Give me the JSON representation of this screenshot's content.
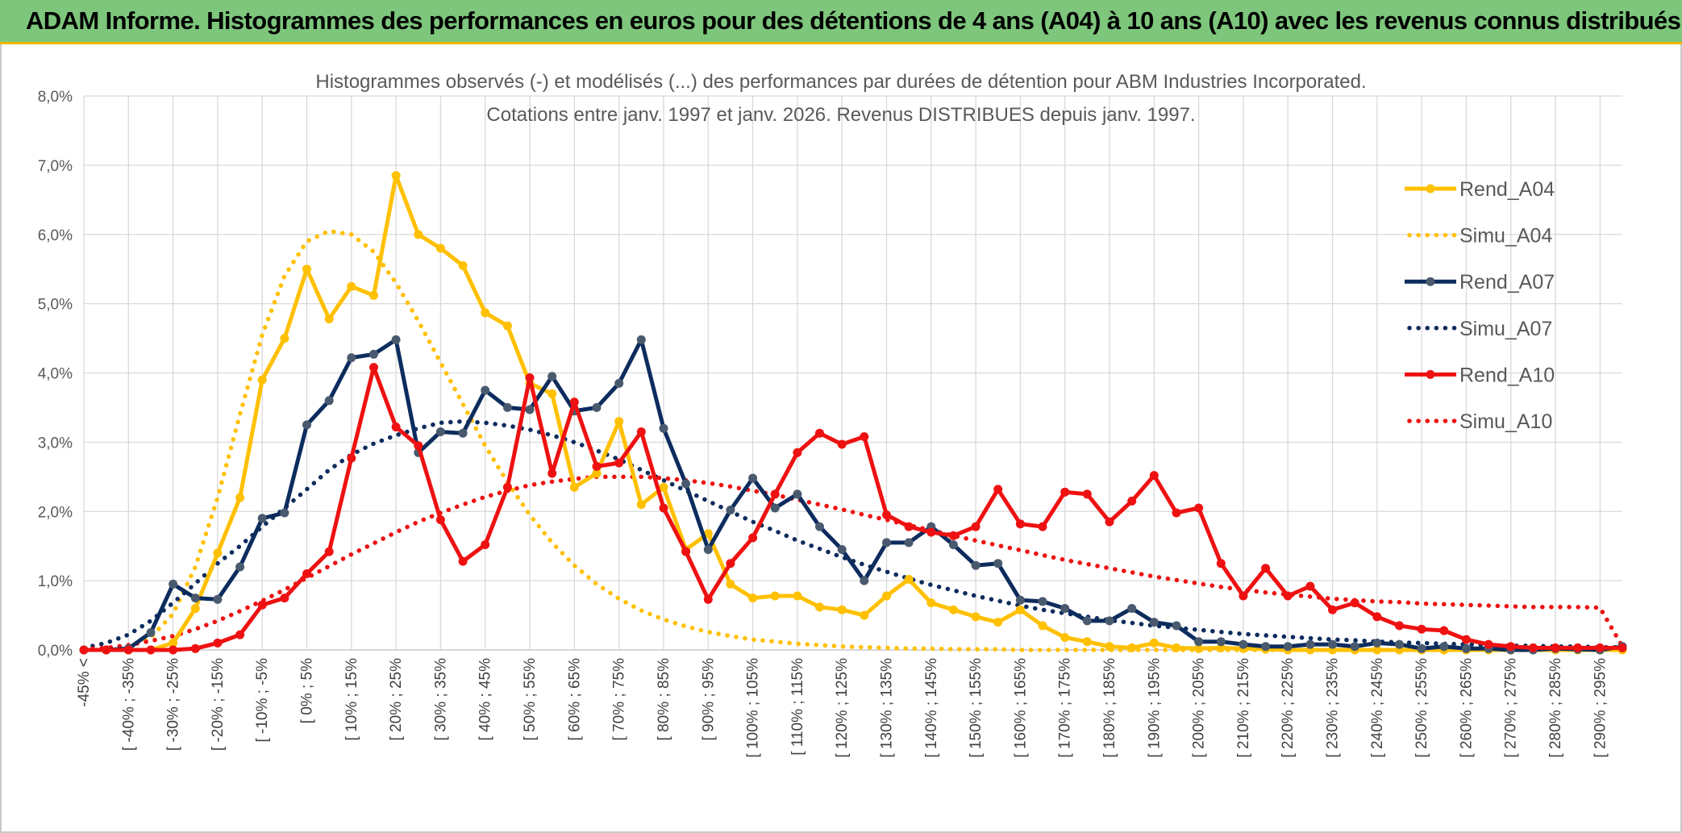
{
  "banner": {
    "title": "ADAM Informe. Histogrammes des performances en euros pour des détentions de 4 ans (A04) à 10 ans (A10) avec les revenus connus distribués"
  },
  "chart_data": {
    "type": "line",
    "title_lines": [
      "Histogrammes observés (-) et modélisés (...) des performances par durées de détention pour ABM Industries Incorporated.",
      "Cotations entre janv. 1997 et janv. 2026. Revenus DISTRIBUES depuis janv. 1997."
    ],
    "ylim": [
      0,
      8
    ],
    "ytick_labels": [
      "0,0%",
      "1,0%",
      "2,0%",
      "3,0%",
      "4,0%",
      "5,0%",
      "6,0%",
      "7,0%",
      "8,0%"
    ],
    "grid": true,
    "legend_position": "right",
    "x_labels": [
      "-45% <",
      "[ -40% ; -35%",
      "[ -30% ; -25%",
      "[ -20% ; -15%",
      "[ -10% ; -5%",
      "[ 0% ; 5%",
      "[ 10% ; 15%",
      "[ 20% ; 25%",
      "[ 30% ; 35%",
      "[ 40% ; 45%",
      "[ 50% ; 55%",
      "[ 60% ; 65%",
      "[ 70% ; 75%",
      "[ 80% ; 85%",
      "[ 90% ; 95%",
      "[ 100% ; 105%",
      "[ 110% ; 115%",
      "[ 120% ; 125%",
      "[ 130% ; 135%",
      "[ 140% ; 145%",
      "[ 150% ; 155%",
      "[ 160% ; 165%",
      "[ 170% ; 175%",
      "[ 180% ; 185%",
      "[ 190% ; 195%",
      "[ 200% ; 205%",
      "[ 210% ; 215%",
      "[ 220% ; 225%",
      "[ 230% ; 235%",
      "[ 240% ; 245%",
      "[ 250% ; 255%",
      "[ 260% ; 265%",
      "[ 270% ; 275%",
      "[ 280% ; 285%",
      "[ 290% ; 295%"
    ],
    "series": [
      {
        "name": "Rend_A04",
        "style": "solid",
        "color": "#ffc000",
        "values": [
          0.0,
          0.0,
          0.0,
          0.0,
          0.1,
          0.6,
          1.4,
          2.2,
          3.9,
          4.5,
          5.5,
          4.78,
          5.25,
          5.12,
          6.85,
          6.0,
          5.8,
          5.55,
          4.87,
          4.68,
          3.85,
          3.7,
          2.35,
          2.55,
          3.3,
          2.1,
          2.35,
          1.45,
          1.68,
          0.95,
          0.75,
          0.78,
          0.78,
          0.62,
          0.58,
          0.5,
          0.78,
          1.02,
          0.68,
          0.58,
          0.48,
          0.4,
          0.58,
          0.35,
          0.18,
          0.12,
          0.05,
          0.03,
          0.1,
          0.03,
          0.02,
          0.03,
          0.02,
          0.01,
          0.0,
          0.0,
          0.0,
          0.0,
          0.0,
          0.0,
          0.0,
          0.0,
          0.0,
          0.0,
          0.0,
          0.0,
          0.0,
          0.0,
          0.0,
          0.0
        ]
      },
      {
        "name": "Simu_A04",
        "style": "dotted",
        "color": "#ffc000",
        "values": [
          0.0,
          0.01,
          0.05,
          0.18,
          0.52,
          1.2,
          2.2,
          3.4,
          4.55,
          5.4,
          5.9,
          6.05,
          6.0,
          5.75,
          5.3,
          4.75,
          4.15,
          3.55,
          2.95,
          2.42,
          1.95,
          1.55,
          1.22,
          0.95,
          0.74,
          0.57,
          0.44,
          0.34,
          0.26,
          0.2,
          0.15,
          0.12,
          0.09,
          0.07,
          0.05,
          0.04,
          0.03,
          0.02,
          0.02,
          0.01,
          0.01,
          0.01,
          0.0,
          0.0,
          0.0,
          0.0,
          0.0,
          0.0,
          0.0,
          0.0,
          0.0,
          0.0,
          0.0,
          0.0,
          0.0,
          0.0,
          0.0,
          0.0,
          0.0,
          0.0,
          0.0,
          0.0,
          0.0,
          0.0,
          0.0,
          0.0,
          0.0,
          0.0,
          0.0,
          0.0
        ]
      },
      {
        "name": "Rend_A07",
        "style": "solid",
        "color": "#0d2c5e",
        "values": [
          0.0,
          0.0,
          0.02,
          0.25,
          0.95,
          0.75,
          0.73,
          1.2,
          1.9,
          1.98,
          3.25,
          3.6,
          4.22,
          4.27,
          4.48,
          2.85,
          3.15,
          3.13,
          3.75,
          3.5,
          3.47,
          3.95,
          3.45,
          3.5,
          3.85,
          4.48,
          3.2,
          2.4,
          1.45,
          2.02,
          2.48,
          2.05,
          2.25,
          1.78,
          1.45,
          1.0,
          1.55,
          1.55,
          1.78,
          1.52,
          1.22,
          1.25,
          0.72,
          0.7,
          0.6,
          0.42,
          0.42,
          0.6,
          0.4,
          0.35,
          0.12,
          0.12,
          0.08,
          0.05,
          0.05,
          0.08,
          0.08,
          0.05,
          0.1,
          0.08,
          0.02,
          0.05,
          0.02,
          0.02,
          0.0,
          0.0,
          0.02,
          0.01,
          0.0,
          0.05
        ]
      },
      {
        "name": "Simu_A07",
        "style": "dotted",
        "color": "#0d2c5e",
        "values": [
          0.03,
          0.1,
          0.22,
          0.42,
          0.68,
          0.96,
          1.25,
          1.5,
          1.78,
          2.05,
          2.32,
          2.6,
          2.82,
          2.98,
          3.1,
          3.2,
          3.28,
          3.3,
          3.28,
          3.24,
          3.18,
          3.1,
          3.0,
          2.88,
          2.75,
          2.6,
          2.45,
          2.3,
          2.15,
          2.0,
          1.85,
          1.72,
          1.58,
          1.46,
          1.34,
          1.23,
          1.13,
          1.03,
          0.94,
          0.86,
          0.78,
          0.71,
          0.64,
          0.58,
          0.53,
          0.48,
          0.43,
          0.39,
          0.35,
          0.32,
          0.29,
          0.26,
          0.23,
          0.21,
          0.19,
          0.17,
          0.15,
          0.14,
          0.12,
          0.11,
          0.1,
          0.09,
          0.08,
          0.07,
          0.06,
          0.06,
          0.05,
          0.05,
          0.04,
          0.04
        ]
      },
      {
        "name": "Rend_A10",
        "style": "solid",
        "color": "#ee1111",
        "values": [
          0.0,
          0.0,
          0.0,
          0.0,
          0.0,
          0.02,
          0.1,
          0.22,
          0.65,
          0.75,
          1.1,
          1.42,
          2.77,
          4.08,
          3.22,
          2.95,
          1.88,
          1.28,
          1.52,
          2.35,
          3.93,
          2.55,
          3.58,
          2.65,
          2.7,
          3.15,
          2.05,
          1.42,
          0.73,
          1.25,
          1.62,
          2.25,
          2.85,
          3.13,
          2.97,
          3.08,
          1.95,
          1.78,
          1.7,
          1.65,
          1.78,
          2.32,
          1.82,
          1.78,
          2.28,
          2.25,
          1.85,
          2.15,
          2.52,
          1.98,
          2.05,
          1.25,
          0.78,
          1.18,
          0.78,
          0.92,
          0.58,
          0.68,
          0.48,
          0.35,
          0.3,
          0.28,
          0.15,
          0.08,
          0.05,
          0.03,
          0.03,
          0.03,
          0.03,
          0.03
        ]
      },
      {
        "name": "Simu_A10",
        "style": "dotted",
        "color": "#ee1111",
        "values": [
          0.01,
          0.03,
          0.07,
          0.13,
          0.2,
          0.3,
          0.42,
          0.56,
          0.71,
          0.87,
          1.04,
          1.21,
          1.38,
          1.54,
          1.7,
          1.85,
          1.98,
          2.1,
          2.21,
          2.3,
          2.38,
          2.43,
          2.47,
          2.5,
          2.5,
          2.5,
          2.48,
          2.45,
          2.41,
          2.36,
          2.3,
          2.24,
          2.17,
          2.1,
          2.03,
          1.95,
          1.88,
          1.8,
          1.73,
          1.65,
          1.58,
          1.51,
          1.44,
          1.37,
          1.3,
          1.24,
          1.18,
          1.12,
          1.06,
          1.01,
          0.96,
          0.91,
          0.87,
          0.83,
          0.8,
          0.77,
          0.74,
          0.72,
          0.7,
          0.69,
          0.67,
          0.66,
          0.65,
          0.64,
          0.63,
          0.62,
          0.62,
          0.62,
          0.61,
          0.05
        ]
      }
    ]
  }
}
